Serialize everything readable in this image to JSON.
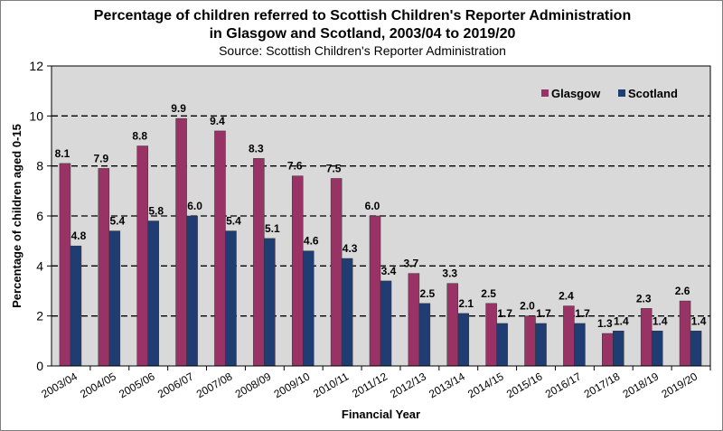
{
  "chart_data": {
    "type": "bar",
    "title_line1": "Percentage of children referred to Scottish Children's Reporter Administration",
    "title_line2": "in Glasgow and Scotland, 2003/04 to 2019/20",
    "subtitle": "Source: Scottish Children's Reporter Administration",
    "xlabel": "Financial Year",
    "ylabel": "Percentage of children aged 0-15",
    "ylim": [
      0,
      12
    ],
    "yticks": [
      "0",
      "2",
      "4",
      "6",
      "8",
      "10",
      "12"
    ],
    "grid": "dashed horizontal",
    "legend_position": "top-right",
    "categories": [
      "2003/04",
      "2004/05",
      "2005/06",
      "2006/07",
      "2007/08",
      "2008/09",
      "2009/10",
      "2010/11",
      "2011/12",
      "2012/13",
      "2013/14",
      "2014/15",
      "2015/16",
      "2016/17",
      "2017/18",
      "2018/19",
      "2019/20"
    ],
    "series": [
      {
        "name": "Glasgow",
        "color": "#993366",
        "values": [
          8.1,
          7.9,
          8.8,
          9.9,
          9.4,
          8.3,
          7.6,
          7.5,
          6.0,
          3.7,
          3.3,
          2.5,
          2.0,
          2.4,
          1.3,
          2.3,
          2.6
        ]
      },
      {
        "name": "Scotland",
        "color": "#1f3d73",
        "values": [
          4.8,
          5.4,
          5.8,
          6.0,
          5.4,
          5.1,
          4.6,
          4.3,
          3.4,
          2.5,
          2.1,
          1.7,
          1.7,
          1.7,
          1.4,
          1.4,
          1.4
        ]
      }
    ],
    "plot_background": "#d9d9d9"
  }
}
